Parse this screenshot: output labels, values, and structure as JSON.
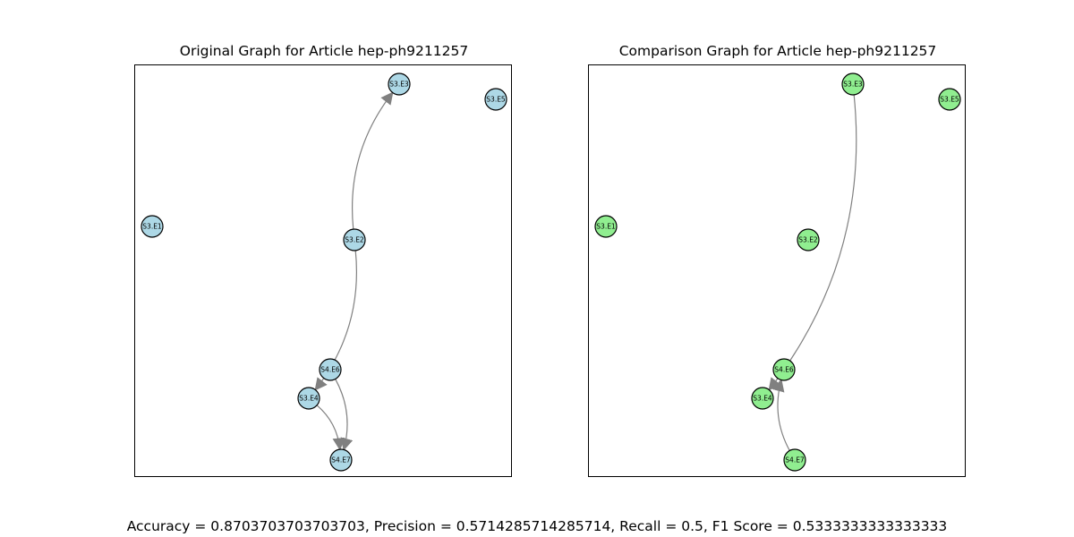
{
  "graphs": [
    {
      "title": "Original Graph for Article hep-ph9211257",
      "node_color": "#add8e6",
      "nodes": [
        {
          "id": "S3.E1",
          "label": "S3.E1"
        },
        {
          "id": "S3.E2",
          "label": "S3.E2"
        },
        {
          "id": "S3.E3",
          "label": "S3.E3"
        },
        {
          "id": "S3.E4",
          "label": "S3.E4"
        },
        {
          "id": "S3.E5",
          "label": "S3.E5"
        },
        {
          "id": "S4.E6",
          "label": "S4.E6"
        },
        {
          "id": "S4.E7",
          "label": "S4.E7"
        }
      ],
      "edges": [
        {
          "from": "S3.E2",
          "to": "S3.E3"
        },
        {
          "from": "S3.E2",
          "to": "S3.E4"
        },
        {
          "from": "S3.E4",
          "to": "S4.E7"
        },
        {
          "from": "S4.E6",
          "to": "S4.E7"
        }
      ]
    },
    {
      "title": "Comparison Graph for Article hep-ph9211257",
      "node_color": "#90ee90",
      "nodes": [
        {
          "id": "S3.E1",
          "label": "S3.E1"
        },
        {
          "id": "S3.E2",
          "label": "S3.E2"
        },
        {
          "id": "S3.E3",
          "label": "S3.E3"
        },
        {
          "id": "S3.E4",
          "label": "S3.E4"
        },
        {
          "id": "S3.E5",
          "label": "S3.E5"
        },
        {
          "id": "S4.E6",
          "label": "S4.E6"
        },
        {
          "id": "S4.E7",
          "label": "S4.E7"
        }
      ],
      "edges": [
        {
          "from": "S3.E3",
          "to": "S3.E4"
        },
        {
          "from": "S4.E7",
          "to": "S4.E6"
        }
      ]
    }
  ],
  "metrics_text": "Accuracy = 0.8703703703703703, Precision = 0.5714285714285714, Recall = 0.5, F1 Score = 0.5333333333333333",
  "edge_color": "#808080"
}
